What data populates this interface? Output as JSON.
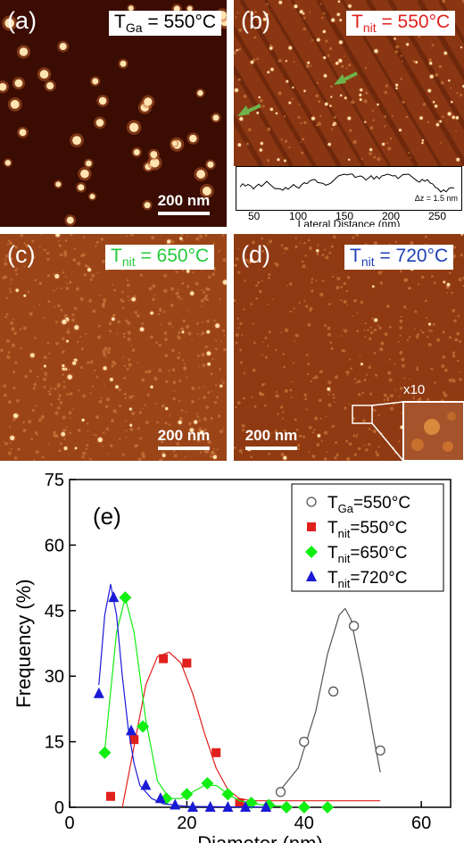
{
  "panels": {
    "a": {
      "label": "(a)",
      "temp_prefix": "T",
      "temp_sub": "Ga",
      "temp_value": " = 550°C",
      "temp_color": "#000000",
      "scale": "200 nm"
    },
    "b": {
      "label": "(b)",
      "temp_prefix": "T",
      "temp_sub": "nit",
      "temp_value": " = 550°C",
      "temp_color": "#e0201c",
      "profile": {
        "xlabel": "Lateral Distance (nm)",
        "ticks": [
          "50",
          "100",
          "150",
          "200",
          "250"
        ],
        "dz": "Δz = 1.5 nm"
      }
    },
    "c": {
      "label": "(c)",
      "temp_prefix": "T",
      "temp_sub": "nit",
      "temp_value": " = 650°C",
      "temp_color": "#22c93a",
      "scale": "200 nm"
    },
    "d": {
      "label": "(d)",
      "temp_prefix": "T",
      "temp_sub": "nit",
      "temp_value": " = 720°C",
      "temp_color": "#1e3fb3",
      "scale": "200 nm",
      "zoom": "x10"
    }
  },
  "chart_data": {
    "type": "scatter",
    "panel_label": "(e)",
    "xlabel": "Diameter (nm)",
    "ylabel": "Frequency (%)",
    "xlim": [
      0,
      65
    ],
    "ylim": [
      0,
      75
    ],
    "xticks": [
      0,
      20,
      40,
      60
    ],
    "yticks": [
      0,
      15,
      30,
      45,
      60,
      75
    ],
    "legend_position": "top-right",
    "series": [
      {
        "name_prefix": "T",
        "name_sub": "Ga",
        "name_value": "=550°C",
        "marker": "open-circle",
        "color": "#555555",
        "x": [
          36,
          40,
          45,
          48.5,
          53
        ],
        "y": [
          3.5,
          15,
          26.5,
          41.5,
          13
        ],
        "fit_x": [
          36,
          39,
          42,
          44,
          46,
          47,
          48,
          50,
          52,
          53
        ],
        "fit_y": [
          4,
          9,
          22,
          35,
          44,
          45.5,
          43,
          30,
          15,
          8
        ]
      },
      {
        "name_prefix": "T",
        "name_sub": "nit",
        "name_value": "=550°C",
        "marker": "square",
        "color": "#e0201c",
        "x": [
          7,
          11,
          16,
          20,
          25,
          29
        ],
        "y": [
          2.5,
          15.5,
          34,
          33,
          12.5,
          1
        ],
        "fit_x": [
          9,
          11,
          13,
          15,
          17,
          19,
          21,
          23,
          25,
          27,
          29,
          31,
          53
        ],
        "fit_y": [
          0,
          14,
          28,
          34.5,
          35.5,
          33,
          26,
          17,
          9,
          4,
          2,
          1.5,
          1.5
        ]
      },
      {
        "name_prefix": "T",
        "name_sub": "nit",
        "name_value": "=650°C",
        "marker": "diamond",
        "color": "#11ee11",
        "x": [
          6,
          9.5,
          12.5,
          16.5,
          20,
          23.5,
          27,
          31,
          34,
          37,
          40,
          44
        ],
        "y": [
          12.5,
          48,
          18.5,
          2,
          3,
          5.5,
          3,
          1,
          0.5,
          0,
          0,
          0
        ],
        "fit_x": [
          6,
          8,
          9.5,
          11,
          13,
          15,
          17,
          19,
          21,
          23,
          25,
          27,
          29,
          33,
          37
        ],
        "fit_y": [
          13,
          40,
          48,
          40,
          20,
          6,
          2,
          2,
          3.5,
          5,
          5,
          3,
          1.5,
          0.5,
          0.2
        ]
      },
      {
        "name_prefix": "T",
        "name_sub": "nit",
        "name_value": "=720°C",
        "marker": "triangle",
        "color": "#1a1ad6",
        "x": [
          5,
          7.5,
          10.5,
          13,
          15.5,
          18,
          21,
          24,
          27,
          30,
          33.5
        ],
        "y": [
          26,
          48,
          17.5,
          5,
          2,
          0.5,
          0,
          0,
          0,
          0,
          0
        ],
        "fit_x": [
          5,
          6,
          7,
          8,
          9,
          10,
          11,
          12,
          14,
          16,
          20,
          34
        ],
        "fit_y": [
          28,
          44,
          51,
          44,
          30,
          18,
          10,
          5,
          2,
          0.8,
          0.2,
          0
        ]
      }
    ]
  }
}
